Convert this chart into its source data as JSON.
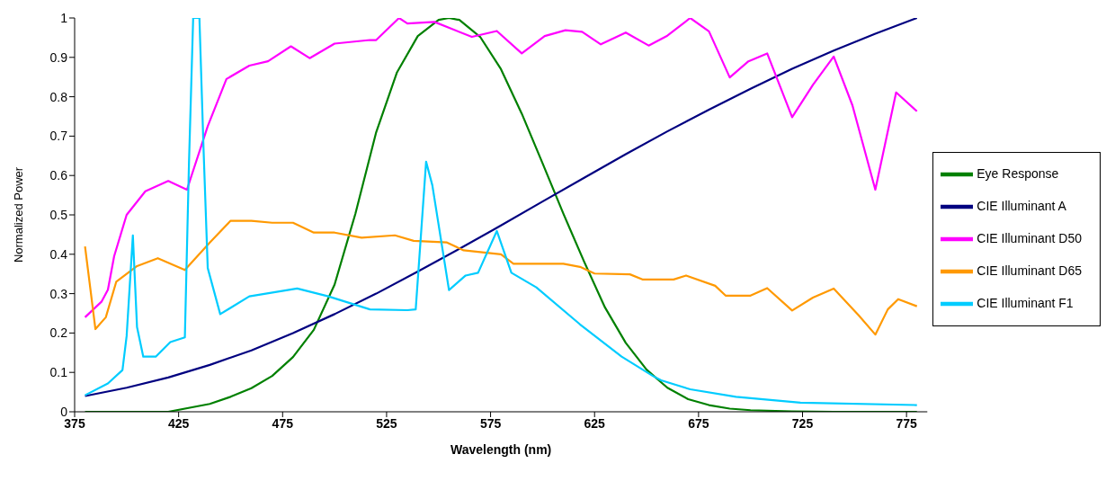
{
  "chart_data": {
    "type": "line",
    "xlabel": "Wavelength (nm)",
    "ylabel": "Normalized Power",
    "xlim": [
      375,
      785
    ],
    "xticks": [
      375,
      425,
      475,
      525,
      575,
      625,
      675,
      725,
      775
    ],
    "ylim": [
      0,
      1
    ],
    "yticks": [
      0,
      0.1,
      0.2,
      0.3,
      0.4,
      0.5,
      0.6,
      0.7,
      0.8,
      0.9,
      1
    ],
    "grid": false,
    "legend": "right",
    "marker": "none",
    "line_style": "solid",
    "series": [
      {
        "name": "Eye Response",
        "color": "#008000",
        "x": [
          380,
          400,
          420,
          440,
          450,
          460,
          470,
          480,
          490,
          500,
          510,
          520,
          530,
          540,
          550,
          555,
          560,
          570,
          580,
          590,
          600,
          610,
          620,
          630,
          640,
          650,
          660,
          670,
          680,
          690,
          700,
          720,
          740,
          780
        ],
        "values": [
          0,
          0,
          0,
          0.02,
          0.038,
          0.06,
          0.091,
          0.139,
          0.208,
          0.323,
          0.503,
          0.71,
          0.862,
          0.954,
          0.995,
          1,
          0.995,
          0.952,
          0.87,
          0.757,
          0.631,
          0.503,
          0.381,
          0.265,
          0.175,
          0.107,
          0.061,
          0.032,
          0.017,
          0.008,
          0.004,
          0.001,
          0,
          0
        ]
      },
      {
        "name": "CIE Illuminant A",
        "color": "#000080",
        "x": [
          380,
          400,
          420,
          440,
          460,
          480,
          500,
          520,
          540,
          560,
          580,
          600,
          620,
          640,
          660,
          680,
          700,
          720,
          740,
          760,
          780
        ],
        "values": [
          0.04,
          0.061,
          0.087,
          0.119,
          0.156,
          0.2,
          0.248,
          0.3,
          0.356,
          0.414,
          0.473,
          0.534,
          0.594,
          0.654,
          0.712,
          0.767,
          0.82,
          0.871,
          0.917,
          0.96,
          1
        ]
      },
      {
        "name": "CIE Illuminant D50",
        "color": "#ff00ff",
        "x": [
          380,
          388,
          391,
          394,
          400,
          409,
          420,
          429,
          439,
          448,
          459,
          468,
          479,
          488,
          500,
          517,
          520,
          531,
          535,
          548,
          566,
          578,
          590,
          601,
          611,
          619,
          628,
          640,
          651,
          660,
          671,
          680,
          690,
          699,
          708,
          720,
          730,
          740,
          749,
          760,
          770,
          780
        ],
        "values": [
          0.24,
          0.28,
          0.31,
          0.395,
          0.5,
          0.56,
          0.586,
          0.564,
          0.725,
          0.845,
          0.879,
          0.89,
          0.928,
          0.898,
          0.935,
          0.944,
          0.944,
          1,
          0.986,
          0.99,
          0.952,
          0.967,
          0.91,
          0.954,
          0.969,
          0.965,
          0.933,
          0.963,
          0.93,
          0.955,
          1,
          0.966,
          0.849,
          0.89,
          0.91,
          0.748,
          0.83,
          0.902,
          0.778,
          0.564,
          0.811,
          0.763
        ]
      },
      {
        "name": "CIE Illuminant D65",
        "color": "#ff9900",
        "x": [
          380,
          385,
          390,
          395,
          405,
          415,
          428,
          440,
          450,
          460,
          470,
          480,
          490,
          500,
          513,
          529,
          538,
          554,
          562,
          580,
          586,
          596,
          610,
          618,
          625,
          642,
          648,
          663,
          669,
          683,
          688,
          700,
          708,
          720,
          730,
          740,
          752,
          760,
          766,
          771,
          780
        ],
        "values": [
          0.42,
          0.21,
          0.24,
          0.33,
          0.37,
          0.39,
          0.36,
          0.43,
          0.485,
          0.485,
          0.48,
          0.48,
          0.455,
          0.455,
          0.442,
          0.448,
          0.434,
          0.43,
          0.41,
          0.4,
          0.376,
          0.376,
          0.376,
          0.368,
          0.351,
          0.349,
          0.336,
          0.336,
          0.346,
          0.32,
          0.295,
          0.295,
          0.314,
          0.257,
          0.29,
          0.313,
          0.245,
          0.196,
          0.26,
          0.286,
          0.268
        ]
      },
      {
        "name": "CIE Illuminant F1",
        "color": "#00ccff",
        "x": [
          380,
          391,
          398,
          400,
          403,
          405,
          408,
          414,
          421,
          428,
          430,
          432,
          435,
          437,
          439,
          445,
          459,
          482,
          497,
          517,
          535,
          539,
          544,
          547,
          555,
          563,
          569,
          578,
          585,
          597,
          618,
          638,
          653,
          657,
          671,
          693,
          724,
          780
        ],
        "values": [
          0.042,
          0.072,
          0.106,
          0.192,
          0.448,
          0.215,
          0.14,
          0.14,
          0.177,
          0.189,
          0.635,
          1,
          1,
          0.665,
          0.365,
          0.248,
          0.293,
          0.313,
          0.293,
          0.26,
          0.258,
          0.26,
          0.635,
          0.575,
          0.309,
          0.346,
          0.353,
          0.459,
          0.353,
          0.316,
          0.222,
          0.14,
          0.091,
          0.08,
          0.057,
          0.038,
          0.023,
          0.017
        ]
      }
    ]
  }
}
